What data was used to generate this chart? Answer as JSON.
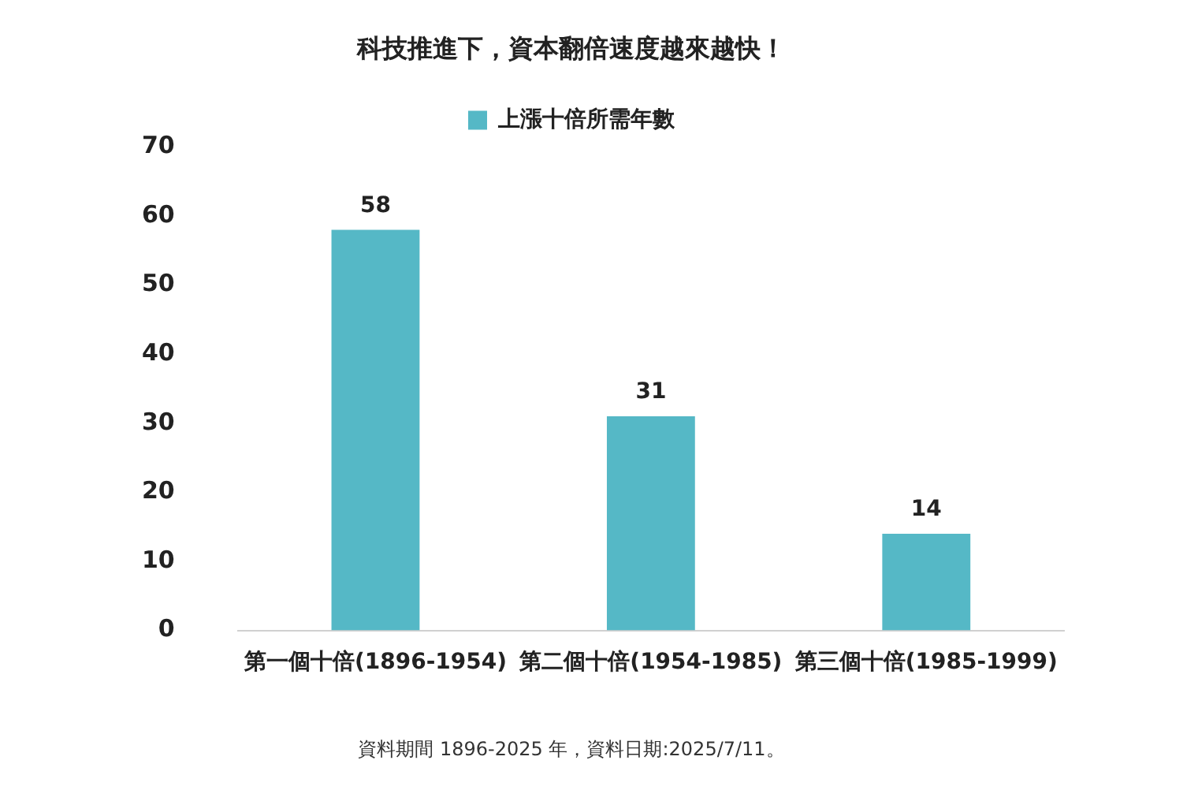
{
  "chart_data": {
    "type": "bar",
    "title": "科技推進下，資本翻倍速度越來越快！",
    "categories": [
      "第一個十倍(1896-1954)",
      "第二個十倍(1954-1985)",
      "第三個十倍(1985-1999)"
    ],
    "series": [
      {
        "name": "上漲十倍所需年數",
        "color": "#55b8c6",
        "values": [
          58,
          31,
          14
        ]
      }
    ],
    "ylim": [
      0,
      70
    ],
    "yticks": [
      0,
      10,
      20,
      30,
      40,
      50,
      60,
      70
    ],
    "grid": false,
    "legend": "top",
    "data_labels": true,
    "annotations": [
      "資料期間 1896-2025 年，資料日期:2025/7/11。"
    ]
  }
}
